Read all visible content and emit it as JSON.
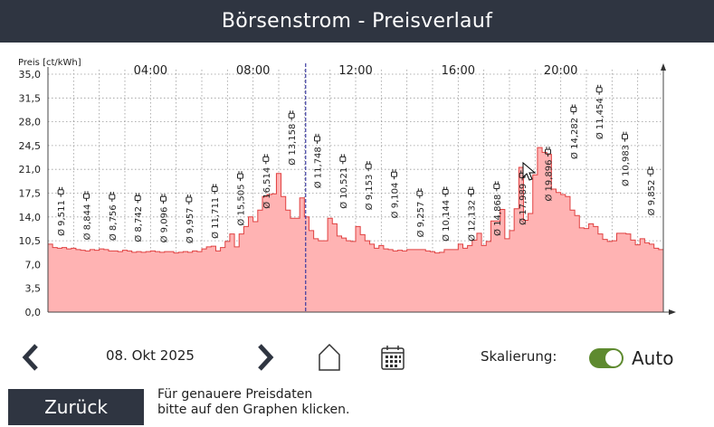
{
  "header": {
    "title": "Börsenstrom - Preisverlauf"
  },
  "chart_data": {
    "type": "area",
    "ylabel": "Preis [ct/kWh]",
    "ylim": [
      0,
      35
    ],
    "yticks": [
      "0,0",
      "3,5",
      "7,0",
      "10,5",
      "14,0",
      "17,5",
      "21,0",
      "24,5",
      "28,0",
      "31,5",
      "35,0"
    ],
    "xlim": [
      0,
      24
    ],
    "xticks": [
      {
        "hour": 4,
        "label": "04:00"
      },
      {
        "hour": 8,
        "label": "08:00"
      },
      {
        "hour": 12,
        "label": "12:00"
      },
      {
        "hour": 16,
        "label": "16:00"
      },
      {
        "hour": 20,
        "label": "20:00"
      }
    ],
    "current_hour": 10.05,
    "grid": true,
    "fill_color": "#ffb3b3",
    "line_color": "#e04040",
    "values": [
      10.0,
      9.5,
      9.4,
      9.5,
      9.3,
      9.4,
      9.2,
      9.1,
      9.0,
      9.2,
      9.1,
      9.3,
      9.2,
      9.0,
      9.0,
      8.9,
      9.1,
      9.0,
      8.8,
      8.9,
      8.8,
      8.9,
      9.0,
      8.9,
      8.8,
      8.9,
      8.9,
      8.7,
      8.8,
      8.9,
      8.8,
      9.0,
      8.9,
      9.3,
      9.6,
      9.7,
      9.0,
      9.5,
      10.4,
      11.5,
      9.6,
      11.5,
      12.6,
      14.0,
      13.3,
      15.0,
      17.0,
      17.3,
      17.4,
      20.4,
      17.0,
      15.0,
      13.8,
      13.8,
      16.8,
      14.0,
      12.0,
      10.8,
      10.5,
      10.5,
      13.8,
      13.0,
      11.2,
      10.9,
      10.5,
      10.4,
      12.6,
      11.4,
      10.5,
      10.0,
      9.4,
      9.8,
      9.3,
      9.2,
      9.0,
      9.1,
      9.0,
      9.2,
      9.2,
      9.2,
      9.2,
      9.0,
      8.9,
      8.7,
      8.8,
      9.2,
      9.2,
      9.2,
      10.0,
      9.4,
      9.8,
      10.6,
      11.6,
      9.8,
      10.4,
      13.4,
      13.4,
      15.1,
      10.8,
      12.0,
      15.2,
      21.3,
      13.5,
      14.5,
      20.2,
      24.2,
      23.5,
      23.2,
      18.1,
      17.6,
      17.3,
      17.0,
      15.0,
      14.2,
      12.4,
      12.3,
      13.0,
      12.6,
      11.5,
      10.7,
      10.4,
      10.5,
      11.6,
      11.6,
      11.5,
      10.6,
      9.9,
      10.8,
      10.2,
      10.0,
      9.4,
      9.2
    ],
    "annotations": [
      {
        "hour": 0.5,
        "label": "Ø 9,511"
      },
      {
        "hour": 1.5,
        "label": "Ø 8,844"
      },
      {
        "hour": 2.5,
        "label": "Ø 8,756"
      },
      {
        "hour": 3.5,
        "label": "Ø 8,742"
      },
      {
        "hour": 4.5,
        "label": "Ø 9,096"
      },
      {
        "hour": 5.5,
        "label": "Ø 9,957"
      },
      {
        "hour": 6.5,
        "label": "Ø 11,711"
      },
      {
        "hour": 7.5,
        "label": "Ø 15,505"
      },
      {
        "hour": 8.5,
        "label": "Ø 16,514"
      },
      {
        "hour": 9.5,
        "label": "Ø 13,158"
      },
      {
        "hour": 10.5,
        "label": "Ø 11,748"
      },
      {
        "hour": 11.5,
        "label": "Ø 10,521"
      },
      {
        "hour": 12.5,
        "label": "Ø 9,153"
      },
      {
        "hour": 13.5,
        "label": "Ø 9,104"
      },
      {
        "hour": 14.5,
        "label": "Ø 9,257"
      },
      {
        "hour": 15.5,
        "label": "Ø 10,144"
      },
      {
        "hour": 16.5,
        "label": "Ø 12,132"
      },
      {
        "hour": 17.5,
        "label": "Ø 14,868"
      },
      {
        "hour": 18.5,
        "label": "Ø 17,989"
      },
      {
        "hour": 19.5,
        "label": "Ø 19,896"
      },
      {
        "hour": 20.5,
        "label": "Ø 14,282"
      },
      {
        "hour": 21.5,
        "label": "Ø 11,454"
      },
      {
        "hour": 22.5,
        "label": "Ø 10,983"
      },
      {
        "hour": 23.5,
        "label": "Ø 9,852"
      }
    ]
  },
  "controls": {
    "date": "08. Okt 2025",
    "prev_icon": "chevron-left-icon",
    "next_icon": "chevron-right-icon",
    "home_icon": "home-icon",
    "calendar_icon": "calendar-icon",
    "scaling_label": "Skalierung:",
    "toggle_on": true,
    "toggle_color": "#5e8a2f",
    "auto_label": "Auto"
  },
  "footer": {
    "back_label": "Zurück",
    "hint_line1": "Für genauere Preisdaten",
    "hint_line2": "bitte auf den Graphen klicken."
  }
}
